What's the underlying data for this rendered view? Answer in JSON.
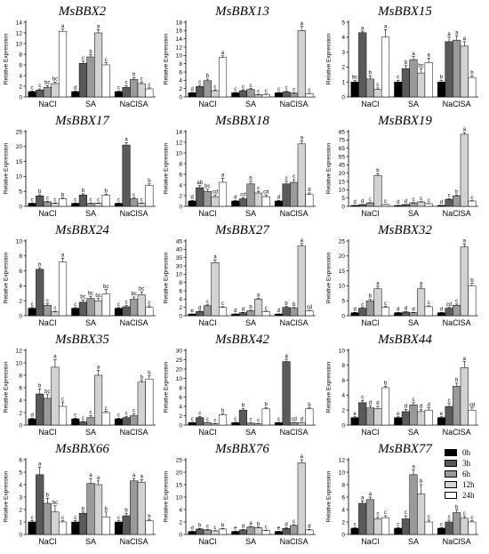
{
  "series_names": [
    "0h",
    "3h",
    "6h",
    "12h",
    "24h"
  ],
  "series_colors": [
    "#000000",
    "#5a5a5a",
    "#9a9a9a",
    "#d2d2d2",
    "#ffffff"
  ],
  "chart_data": [
    {
      "type": "bar",
      "title": "MsBBX2",
      "ylabel": "Relative Expression",
      "categories": [
        "NaCl",
        "SA",
        "NaClSA"
      ],
      "ylim": [
        0,
        14
      ],
      "yticks": [
        0,
        2,
        4,
        6,
        8,
        10,
        12,
        14
      ],
      "values": [
        [
          1,
          1.3,
          1.8,
          2.5,
          12.3
        ],
        [
          1,
          6.3,
          7.5,
          12,
          6
        ],
        [
          1,
          1.8,
          3.3,
          2.5,
          1.5
        ]
      ],
      "errors": [
        [
          0.1,
          0.2,
          0.3,
          0.3,
          0.4
        ],
        [
          0.1,
          0.4,
          0.4,
          0.6,
          0.4
        ],
        [
          0.1,
          0.3,
          0.3,
          0.3,
          0.2
        ]
      ],
      "letters": [
        [
          "c",
          "c",
          "bc",
          "bc",
          "a"
        ],
        [
          "d",
          "c",
          "b",
          "a",
          "c"
        ],
        [
          "c",
          "c",
          "b",
          "c",
          "c"
        ]
      ]
    },
    {
      "type": "bar",
      "title": "MsBBX13",
      "ylabel": "Relative Expression",
      "categories": [
        "NaCl",
        "SA",
        "NaClSA"
      ],
      "ylim": [
        0,
        18
      ],
      "yticks": [
        0,
        2,
        4,
        6,
        8,
        10,
        12,
        14,
        16,
        18
      ],
      "values": [
        [
          1,
          2.5,
          3.9,
          1.5,
          9.5
        ],
        [
          1,
          1.5,
          1.8,
          0.5,
          0.6
        ],
        [
          1,
          1.2,
          0.9,
          16,
          0.8
        ]
      ],
      "errors": [
        [
          0.1,
          0.3,
          0.4,
          0.2,
          0.4
        ],
        [
          0.1,
          0.2,
          0.2,
          0.1,
          0.1
        ],
        [
          0.1,
          0.2,
          0.1,
          1,
          0.1
        ]
      ],
      "letters": [
        [
          "d",
          "c",
          "b",
          "c",
          "a"
        ],
        [
          "c",
          "c",
          "c",
          "c",
          "c"
        ],
        [
          "c",
          "c",
          "c",
          "a",
          "c"
        ]
      ]
    },
    {
      "type": "bar",
      "title": "MsBBX15",
      "ylabel": "Relative Expression",
      "categories": [
        "NaCl",
        "SA",
        "NaClSA"
      ],
      "ylim": [
        0,
        5
      ],
      "yticks": [
        0,
        1,
        2,
        3,
        4,
        5
      ],
      "values": [
        [
          1,
          4.3,
          1.2,
          0.5,
          4
        ],
        [
          1,
          1.9,
          2.5,
          1.6,
          2.3
        ],
        [
          1,
          3.7,
          3.8,
          3.4,
          1.3
        ]
      ],
      "errors": [
        [
          0.1,
          0.1,
          0.2,
          0.1,
          0.5
        ],
        [
          0.1,
          0.2,
          0.2,
          0.3,
          0.3
        ],
        [
          0.1,
          0.3,
          0.3,
          0.3,
          0.1
        ]
      ],
      "letters": [
        [
          "bc",
          "a",
          "b",
          "c",
          "a"
        ],
        [
          "c",
          "b",
          "a",
          "bc",
          "a"
        ],
        [
          "b",
          "a",
          "a",
          "a",
          "b"
        ]
      ]
    },
    {
      "type": "bar",
      "title": "MsBBX17",
      "ylabel": "Relative Expression",
      "categories": [
        "NaCl",
        "SA",
        "NaClSA"
      ],
      "ylim": [
        0,
        25
      ],
      "yticks": [
        0,
        5,
        10,
        15,
        20,
        25
      ],
      "values": [
        [
          1,
          3.5,
          1.5,
          1,
          2.5
        ],
        [
          1,
          3.8,
          1,
          1,
          3.8
        ],
        [
          1,
          20.5,
          2.5,
          1,
          7
        ]
      ],
      "errors": [
        [
          0.1,
          0.4,
          0.2,
          0.1,
          0.3
        ],
        [
          0.1,
          0.4,
          0.1,
          0.1,
          0.3
        ],
        [
          0.1,
          0.8,
          0.3,
          0.1,
          0.5
        ]
      ],
      "letters": [
        [
          "c",
          "b",
          "c",
          "c",
          "b"
        ],
        [
          "c",
          "b",
          "c",
          "c",
          "b"
        ],
        [
          "c",
          "a",
          "c",
          "c",
          "b"
        ]
      ]
    },
    {
      "type": "bar",
      "title": "MsBBX18",
      "ylabel": "Relative Expression",
      "categories": [
        "NaCl",
        "SA",
        "NaClSA"
      ],
      "ylim": [
        0,
        14
      ],
      "yticks": [
        0,
        2,
        4,
        6,
        8,
        10,
        12,
        14
      ],
      "values": [
        [
          1,
          3.5,
          2.8,
          1.8,
          4.5
        ],
        [
          1,
          1.4,
          4.2,
          2.5,
          1.8
        ],
        [
          1,
          4.2,
          4.5,
          11.7,
          2.2
        ]
      ],
      "errors": [
        [
          0.1,
          0.4,
          0.4,
          0.3,
          0.8
        ],
        [
          0.1,
          0.2,
          0.5,
          0.3,
          0.3
        ],
        [
          0.1,
          0.5,
          0.5,
          0.6,
          0.3
        ]
      ],
      "letters": [
        [
          "d",
          "ab",
          "bc",
          "cd",
          "a"
        ],
        [
          "d",
          "cd",
          "b",
          "c",
          "cd"
        ],
        [
          "d",
          "c",
          "c",
          "a",
          "d"
        ]
      ]
    },
    {
      "type": "bar",
      "title": "MsBBX19",
      "ylabel": "Relative Expression",
      "categories": [
        "NaCl",
        "SA",
        "NaClSA"
      ],
      "ylim": [
        0,
        85
      ],
      "yticks": [
        0,
        5,
        10,
        15,
        20,
        45,
        55,
        65,
        75,
        85
      ],
      "values": [
        [
          1,
          2,
          4,
          35,
          2
        ],
        [
          1,
          2,
          4,
          5,
          3
        ],
        [
          1,
          8,
          12,
          82,
          6
        ]
      ],
      "errors": [
        [
          0.1,
          0.2,
          0.4,
          2,
          0.2
        ],
        [
          0.1,
          0.2,
          0.4,
          0.5,
          0.3
        ],
        [
          0.1,
          0.6,
          0.8,
          2,
          0.5
        ]
      ],
      "letters": [
        [
          "d",
          "d",
          "c",
          "b",
          "c"
        ],
        [
          "d",
          "d",
          "c",
          "c",
          "c"
        ],
        [
          "d",
          "c",
          "b",
          "a",
          "c"
        ]
      ]
    },
    {
      "type": "bar",
      "title": "MsBBX24",
      "ylabel": "Relative Expression",
      "categories": [
        "NaCl",
        "SA",
        "NaClSA"
      ],
      "ylim": [
        0,
        10
      ],
      "yticks": [
        0,
        2,
        4,
        6,
        8,
        10
      ],
      "values": [
        [
          1,
          6.2,
          1.4,
          0.5,
          7.2
        ],
        [
          1,
          1.8,
          2.3,
          2,
          2.9
        ],
        [
          1,
          1.2,
          2.2,
          2.8,
          1.1
        ]
      ],
      "errors": [
        [
          0.1,
          0.2,
          0.2,
          0.1,
          0.5
        ],
        [
          0.1,
          0.3,
          0.3,
          0.3,
          0.6
        ],
        [
          0.1,
          0.2,
          0.3,
          0.4,
          0.2
        ]
      ],
      "letters": [
        [
          "c",
          "b",
          "c",
          "c",
          "a"
        ],
        [
          "c",
          "bc",
          "bc",
          "bc",
          "bc"
        ],
        [
          "c",
          "c",
          "bc",
          "bc",
          "c"
        ]
      ]
    },
    {
      "type": "bar",
      "title": "MsBBX27",
      "ylabel": "Relative Expression",
      "categories": [
        "NaCl",
        "SA",
        "NaClSA"
      ],
      "ylim": [
        0,
        45
      ],
      "yticks": [
        0,
        2,
        4,
        6,
        8,
        10,
        30,
        35,
        40,
        45
      ],
      "values": [
        [
          1,
          2.5,
          6,
          32,
          5
        ],
        [
          1,
          1.8,
          3,
          10,
          2.5
        ],
        [
          1,
          5,
          4.5,
          42,
          3
        ]
      ],
      "errors": [
        [
          0.1,
          0.3,
          0.5,
          1.5,
          0.4
        ],
        [
          0.1,
          0.2,
          0.3,
          0.6,
          0.3
        ],
        [
          0.1,
          0.5,
          0.5,
          1.5,
          0.3
        ]
      ],
      "letters": [
        [
          "e",
          "d",
          "c",
          "a",
          "c"
        ],
        [
          "d",
          "d",
          "b",
          "a",
          "c"
        ],
        [
          "d",
          "b",
          "b",
          "a",
          "cd"
        ]
      ]
    },
    {
      "type": "bar",
      "title": "MsBBX32",
      "ylabel": "Relative Expression",
      "categories": [
        "NaCl",
        "SA",
        "NaClSA"
      ],
      "ylim": [
        0,
        25
      ],
      "yticks": [
        0,
        5,
        10,
        15,
        20,
        25
      ],
      "values": [
        [
          1,
          2.5,
          5,
          9,
          2.8
        ],
        [
          1,
          1.2,
          1,
          9,
          3
        ],
        [
          1,
          2.5,
          3.5,
          23,
          10
        ]
      ],
      "errors": [
        [
          0.1,
          0.3,
          0.5,
          0.8,
          0.3
        ],
        [
          0.1,
          0.2,
          0.1,
          0.8,
          0.3
        ],
        [
          0.1,
          0.3,
          0.4,
          1,
          0.8
        ]
      ],
      "letters": [
        [
          "d",
          "c",
          "b",
          "a",
          "c"
        ],
        [
          "d",
          "d",
          "d",
          "a",
          "c"
        ],
        [
          "d",
          "cd",
          "c",
          "a",
          "b"
        ]
      ]
    },
    {
      "type": "bar",
      "title": "MsBBX35",
      "ylabel": "Relative Expression",
      "categories": [
        "NaCl",
        "SA",
        "NaClSA"
      ],
      "ylim": [
        0,
        12
      ],
      "yticks": [
        0,
        2,
        4,
        6,
        8,
        10,
        12
      ],
      "values": [
        [
          1,
          5,
          4.3,
          9.3,
          3
        ],
        [
          1,
          0.5,
          1.2,
          8,
          2
        ],
        [
          1,
          1.2,
          1.5,
          6.9,
          7.4
        ]
      ],
      "errors": [
        [
          0.1,
          0.8,
          0.6,
          1.2,
          0.7
        ],
        [
          0.1,
          0.1,
          0.3,
          0.8,
          0.2
        ],
        [
          0.1,
          0.2,
          0.3,
          0.3,
          0.5
        ]
      ],
      "letters": [
        [
          "d",
          "b",
          "bc",
          "a",
          "c"
        ],
        [
          "c",
          "c",
          "c",
          "a",
          "c"
        ],
        [
          "c",
          "c",
          "c",
          "b",
          "b"
        ]
      ]
    },
    {
      "type": "bar",
      "title": "MsBBX42",
      "ylabel": "Relative Expression",
      "categories": [
        "NaCl",
        "SA",
        "NaClSA"
      ],
      "ylim": [
        0,
        30
      ],
      "yticks": [
        0,
        2,
        4,
        6,
        8,
        10,
        20,
        25,
        30
      ],
      "values": [
        [
          1,
          3,
          1,
          0.5,
          4.2
        ],
        [
          1,
          6,
          0.8,
          0.5,
          6.5
        ],
        [
          1,
          25.5,
          1,
          1,
          6.5
        ]
      ],
      "errors": [
        [
          0.1,
          0.4,
          0.1,
          0.1,
          0.4
        ],
        [
          0.1,
          0.6,
          0.1,
          0.1,
          0.5
        ],
        [
          0.1,
          1,
          0.1,
          0.1,
          0.4
        ]
      ],
      "letters": [
        [
          "c",
          "c",
          "c",
          "c",
          "b"
        ],
        [
          "c",
          "b",
          "c",
          "c",
          "b"
        ],
        [
          "c",
          "a",
          "cd",
          "d",
          "b"
        ]
      ]
    },
    {
      "type": "bar",
      "title": "MsBBX44",
      "ylabel": "Relative Expression",
      "categories": [
        "NaCl",
        "SA",
        "NaClSA"
      ],
      "ylim": [
        0,
        10
      ],
      "yticks": [
        0,
        2,
        4,
        6,
        8,
        10
      ],
      "values": [
        [
          1,
          3,
          2.3,
          2.2,
          5
        ],
        [
          1,
          1.8,
          2.7,
          1.8,
          2
        ],
        [
          1,
          2.5,
          5.2,
          7.7,
          2
        ]
      ],
      "errors": [
        [
          0.1,
          0.3,
          0.3,
          0.3,
          0.2
        ],
        [
          0.1,
          0.3,
          0.3,
          0.3,
          0.3
        ],
        [
          0.1,
          0.4,
          0.4,
          0.8,
          0.3
        ]
      ],
      "letters": [
        [
          "e",
          "c",
          "d",
          "d",
          "b"
        ],
        [
          "e",
          "d",
          "c",
          "d",
          "d"
        ],
        [
          "e",
          "c",
          "b",
          "a",
          "cd"
        ]
      ]
    },
    {
      "type": "bar",
      "title": "MsBBX66",
      "ylabel": "Relative Expression",
      "categories": [
        "NaCl",
        "SA",
        "NaClSA"
      ],
      "ylim": [
        0,
        6
      ],
      "yticks": [
        0,
        1,
        2,
        3,
        4,
        5,
        6
      ],
      "values": [
        [
          1,
          4.8,
          2.5,
          1.8,
          1
        ],
        [
          1,
          1.7,
          4.1,
          4,
          1.4
        ],
        [
          1,
          1.5,
          4.3,
          4.2,
          1.1
        ]
      ],
      "errors": [
        [
          0.1,
          0.6,
          0.4,
          0.5,
          0.1
        ],
        [
          0.1,
          0.1,
          0.4,
          0.3,
          0.4
        ],
        [
          0.1,
          0.2,
          0.2,
          0.2,
          0.1
        ]
      ],
      "letters": [
        [
          "c",
          "a",
          "b",
          "bc",
          "c"
        ],
        [
          "c",
          "b",
          "a",
          "a",
          "b"
        ],
        [
          "c",
          "b",
          "a",
          "a",
          "b"
        ]
      ]
    },
    {
      "type": "bar",
      "title": "MsBBX76",
      "ylabel": "Relative Expression",
      "categories": [
        "NaCl",
        "SA",
        "NaClSA"
      ],
      "ylim": [
        0,
        25
      ],
      "yticks": [
        0,
        2,
        4,
        10,
        15,
        20,
        25
      ],
      "values": [
        [
          1,
          1.8,
          1.5,
          1.2,
          1.8
        ],
        [
          1,
          1.5,
          2.5,
          2.3,
          1.3
        ],
        [
          1,
          2,
          3,
          24,
          1.5
        ]
      ],
      "errors": [
        [
          0.1,
          0.2,
          0.2,
          0.1,
          0.2
        ],
        [
          0.1,
          0.2,
          0.2,
          0.2,
          0.1
        ],
        [
          0.1,
          0.3,
          0.3,
          1.5,
          0.2
        ]
      ],
      "letters": [
        [
          "d",
          "b",
          "c",
          "c",
          "b"
        ],
        [
          "e",
          "d",
          "a",
          "b",
          "c"
        ],
        [
          "e",
          "d",
          "c",
          "a",
          "d"
        ]
      ]
    },
    {
      "type": "bar",
      "title": "MsBBX77",
      "ylabel": "Relative Expression",
      "categories": [
        "NaCl",
        "SA",
        "NaClSA"
      ],
      "ylim": [
        0,
        12
      ],
      "yticks": [
        0,
        2,
        4,
        6,
        8,
        10,
        12
      ],
      "values": [
        [
          1,
          5,
          5.6,
          2.5,
          2.7
        ],
        [
          1,
          2.5,
          9.6,
          6.5,
          2
        ],
        [
          1,
          2,
          3.5,
          2.6,
          2
        ]
      ],
      "errors": [
        [
          0.1,
          0.4,
          0.4,
          0.3,
          0.3
        ],
        [
          0.1,
          0.5,
          0.8,
          1.5,
          0.3
        ],
        [
          0.1,
          0.3,
          0.4,
          0.3,
          0.2
        ]
      ],
      "letters": [
        [
          "c",
          "a",
          "a",
          "c",
          "c"
        ],
        [
          "c",
          "c",
          "a",
          "b",
          "c"
        ],
        [
          "c",
          "c",
          "b",
          "c",
          "c"
        ]
      ]
    }
  ]
}
